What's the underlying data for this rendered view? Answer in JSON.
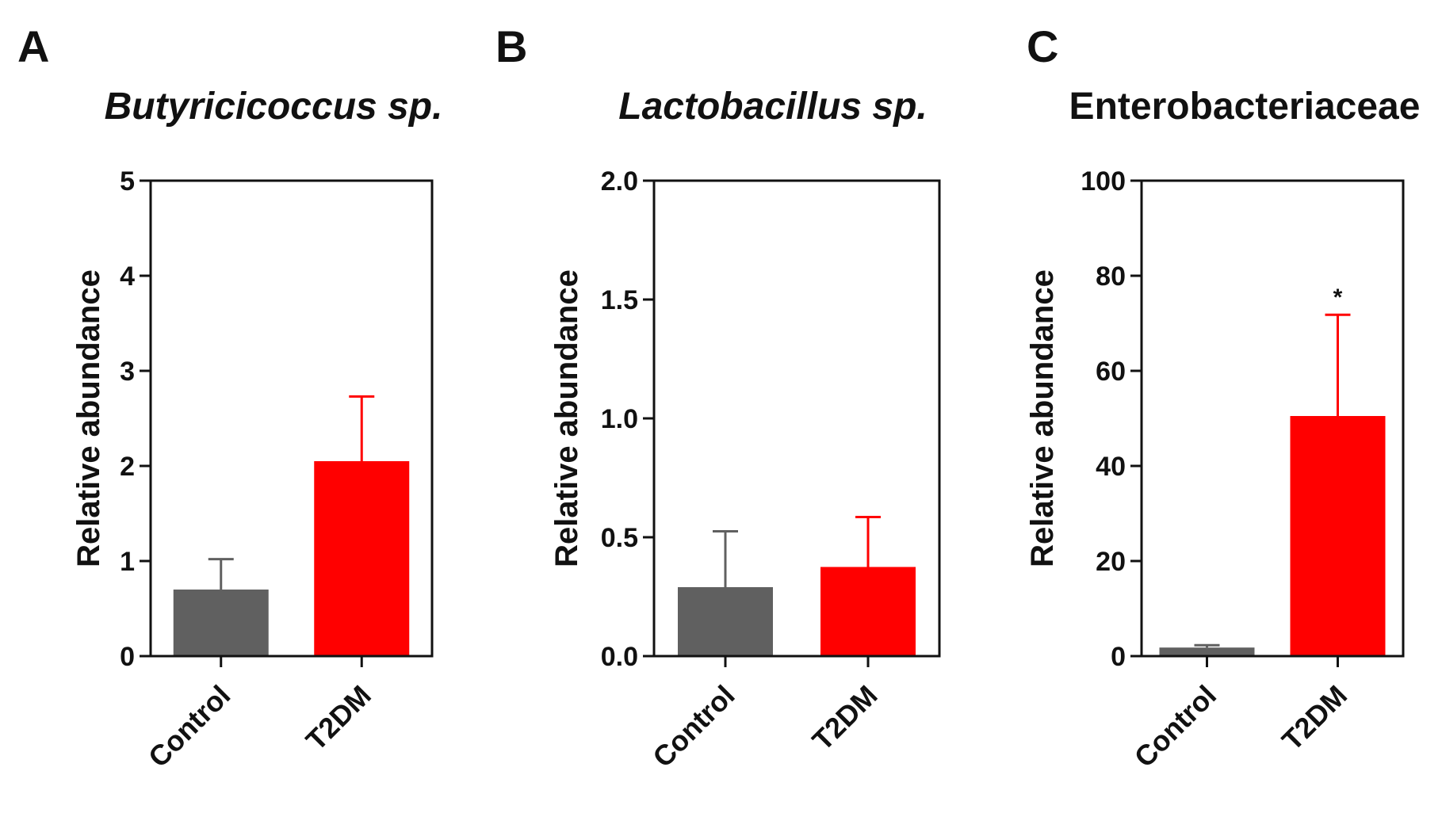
{
  "chart_data": [
    {
      "type": "bar",
      "panel_label": "A",
      "title": "Butyricicoccus sp.",
      "title_italic": true,
      "xlabel": "",
      "ylabel": "Relative abundance",
      "ylim": [
        0,
        5
      ],
      "yticks": [
        0,
        1,
        2,
        3,
        4,
        5
      ],
      "ytick_labels": [
        "0",
        "1",
        "2",
        "3",
        "4",
        "5"
      ],
      "categories": [
        "Control",
        "T2DM"
      ],
      "values": [
        0.7,
        2.05
      ],
      "errors": [
        0.32,
        0.68
      ],
      "colors": [
        "#606060",
        "#ff0000"
      ],
      "annotations": [
        "",
        ""
      ]
    },
    {
      "type": "bar",
      "panel_label": "B",
      "title": "Lactobacillus sp.",
      "title_italic": true,
      "xlabel": "",
      "ylabel": "Relative abundance",
      "ylim": [
        0,
        2.0
      ],
      "yticks": [
        0,
        0.5,
        1.0,
        1.5,
        2.0
      ],
      "ytick_labels": [
        "0.0",
        "0.5",
        "1.0",
        "1.5",
        "2.0"
      ],
      "categories": [
        "Control",
        "T2DM"
      ],
      "values": [
        0.29,
        0.375
      ],
      "errors": [
        0.235,
        0.21
      ],
      "colors": [
        "#606060",
        "#ff0000"
      ],
      "annotations": [
        "",
        ""
      ]
    },
    {
      "type": "bar",
      "panel_label": "C",
      "title": "Enterobacteriaceae",
      "title_italic": false,
      "xlabel": "",
      "ylabel": "Relative abundance",
      "ylim": [
        0,
        100
      ],
      "yticks": [
        0,
        20,
        40,
        60,
        80,
        100
      ],
      "ytick_labels": [
        "0",
        "20",
        "40",
        "60",
        "80",
        "100"
      ],
      "categories": [
        "Control",
        "T2DM"
      ],
      "values": [
        1.8,
        50.5
      ],
      "errors": [
        0.5,
        21.3
      ],
      "colors": [
        "#606060",
        "#ff0000"
      ],
      "annotations": [
        "",
        "*"
      ]
    }
  ]
}
